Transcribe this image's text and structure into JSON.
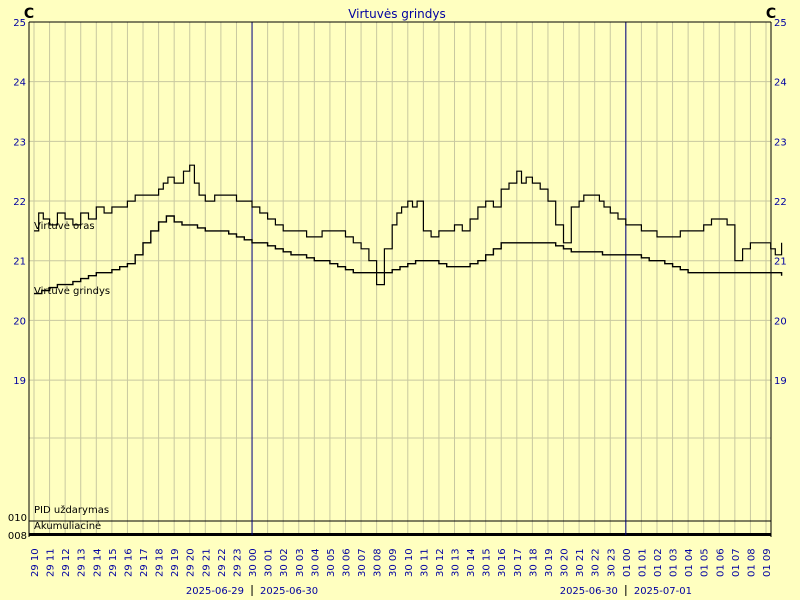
{
  "chart_data": {
    "type": "line",
    "title": "Virtuvės grindys",
    "ylabel_left": "C",
    "ylabel_right": "C",
    "ylim": [
      18.03,
      25
    ],
    "y_ticks": [
      19,
      20,
      21,
      22,
      23,
      24,
      25
    ],
    "x_ticks": [
      "29 10",
      "29 11",
      "29 12",
      "29 13",
      "29 14",
      "29 15",
      "29 16",
      "29 17",
      "29 18",
      "29 19",
      "29 20",
      "29 21",
      "29 22",
      "29 23",
      "30 00",
      "30 01",
      "30 02",
      "30 03",
      "30 04",
      "30 05",
      "30 06",
      "30 07",
      "30 08",
      "30 09",
      "30 10",
      "30 11",
      "30 12",
      "30 13",
      "30 14",
      "30 15",
      "30 16",
      "30 17",
      "30 18",
      "30 19",
      "30 20",
      "30 21",
      "30 22",
      "30 23",
      "01 00",
      "01 01",
      "01 02",
      "01 03",
      "01 04",
      "01 05",
      "01 06",
      "01 07",
      "01 08",
      "01 09"
    ],
    "date_labels": [
      {
        "at_tick": 14,
        "left": "2025-06-29",
        "right": "2025-06-30"
      },
      {
        "at_tick": 38,
        "left": "2025-06-30",
        "right": "2025-07-01"
      }
    ],
    "series": [
      {
        "name": "Virtuvė oras",
        "x": [
          0,
          0.3,
          0.6,
          1,
          1.5,
          2,
          2.5,
          3,
          3.5,
          4,
          4.5,
          5,
          5.5,
          6,
          6.5,
          7,
          7.5,
          8,
          8.3,
          8.6,
          9,
          9.3,
          9.6,
          10,
          10.3,
          10.6,
          11,
          11.3,
          11.6,
          12,
          12.5,
          13,
          13.5,
          14,
          14.5,
          15,
          15.5,
          16,
          16.5,
          17,
          17.5,
          18,
          18.5,
          19,
          19.5,
          20,
          20.5,
          21,
          21.5,
          22,
          22.5,
          23,
          23.3,
          23.6,
          24,
          24.3,
          24.6,
          25,
          25.5,
          26,
          26.5,
          27,
          27.5,
          28,
          28.5,
          29,
          29.5,
          30,
          30.5,
          31,
          31.3,
          31.6,
          32,
          32.5,
          33,
          33.5,
          34,
          34.5,
          35,
          35.3,
          35.6,
          36,
          36.3,
          36.6,
          37,
          37.5,
          38,
          38.5,
          39,
          39.5,
          40,
          40.5,
          41,
          41.5,
          42,
          42.5,
          43,
          43.5,
          44,
          44.5,
          45,
          45.5,
          46,
          46.5,
          47,
          47.3,
          47.6,
          48
        ],
        "values": [
          21.5,
          21.8,
          21.7,
          21.6,
          21.8,
          21.7,
          21.6,
          21.8,
          21.7,
          21.9,
          21.8,
          21.9,
          21.9,
          22.0,
          22.1,
          22.1,
          22.1,
          22.2,
          22.3,
          22.4,
          22.3,
          22.3,
          22.5,
          22.6,
          22.3,
          22.1,
          22.0,
          22.0,
          22.1,
          22.1,
          22.1,
          22.0,
          22.0,
          21.9,
          21.8,
          21.7,
          21.6,
          21.5,
          21.5,
          21.5,
          21.4,
          21.4,
          21.5,
          21.5,
          21.5,
          21.4,
          21.3,
          21.2,
          21.0,
          20.6,
          21.2,
          21.6,
          21.8,
          21.9,
          22.0,
          21.9,
          22.0,
          21.5,
          21.4,
          21.5,
          21.5,
          21.6,
          21.5,
          21.7,
          21.9,
          22.0,
          21.9,
          22.2,
          22.3,
          22.5,
          22.3,
          22.4,
          22.3,
          22.2,
          22.0,
          21.6,
          21.3,
          21.9,
          22.0,
          22.1,
          22.1,
          22.1,
          22.0,
          21.9,
          21.8,
          21.7,
          21.6,
          21.6,
          21.5,
          21.5,
          21.4,
          21.4,
          21.4,
          21.5,
          21.5,
          21.5,
          21.6,
          21.7,
          21.7,
          21.6,
          21.0,
          21.2,
          21.3,
          21.3,
          21.3,
          21.2,
          21.1,
          21.3
        ]
      },
      {
        "name": "Virtuvė grindys",
        "x": [
          0,
          0.5,
          1,
          1.5,
          2,
          2.5,
          3,
          3.5,
          4,
          4.5,
          5,
          5.5,
          6,
          6.5,
          7,
          7.5,
          8,
          8.5,
          9,
          9.5,
          10,
          10.5,
          11,
          11.5,
          12,
          12.5,
          13,
          13.5,
          14,
          14.5,
          15,
          15.5,
          16,
          16.5,
          17,
          17.5,
          18,
          18.5,
          19,
          19.5,
          20,
          20.5,
          21,
          21.5,
          22,
          22.5,
          23,
          23.5,
          24,
          24.5,
          25,
          25.5,
          26,
          26.5,
          27,
          27.5,
          28,
          28.5,
          29,
          29.5,
          30,
          30.5,
          31,
          31.5,
          32,
          32.5,
          33,
          33.5,
          34,
          34.5,
          35,
          35.5,
          36,
          36.5,
          37,
          37.5,
          38,
          38.5,
          39,
          39.5,
          40,
          40.5,
          41,
          41.5,
          42,
          42.5,
          43,
          43.5,
          44,
          44.5,
          45,
          45.5,
          46,
          46.5,
          47,
          47.5,
          48
        ],
        "values": [
          20.45,
          20.5,
          20.55,
          20.6,
          20.6,
          20.65,
          20.7,
          20.75,
          20.8,
          20.8,
          20.85,
          20.9,
          20.95,
          21.1,
          21.3,
          21.5,
          21.65,
          21.75,
          21.65,
          21.6,
          21.6,
          21.55,
          21.5,
          21.5,
          21.5,
          21.45,
          21.4,
          21.35,
          21.3,
          21.3,
          21.25,
          21.2,
          21.15,
          21.1,
          21.1,
          21.05,
          21.0,
          21.0,
          20.95,
          20.9,
          20.85,
          20.8,
          20.8,
          20.8,
          20.8,
          20.8,
          20.85,
          20.9,
          20.95,
          21.0,
          21.0,
          21.0,
          20.95,
          20.9,
          20.9,
          20.9,
          20.95,
          21.0,
          21.1,
          21.2,
          21.3,
          21.3,
          21.3,
          21.3,
          21.3,
          21.3,
          21.3,
          21.25,
          21.2,
          21.15,
          21.15,
          21.15,
          21.15,
          21.1,
          21.1,
          21.1,
          21.1,
          21.1,
          21.05,
          21.0,
          21.0,
          20.95,
          20.9,
          20.85,
          20.8,
          20.8,
          20.8,
          20.8,
          20.8,
          20.8,
          20.8,
          20.8,
          20.8,
          20.8,
          20.8,
          20.8,
          20.75
        ]
      }
    ],
    "bottom_tracks": [
      {
        "label": "PID uždarymas",
        "value_label": "010"
      },
      {
        "label": "Akumuliacinė",
        "value_label": "008"
      }
    ],
    "grid": true
  },
  "colors": {
    "background": "#ffffc0",
    "grid": "#c8c8a0",
    "axis": "#000000",
    "tick_text": "#0000a0",
    "day_divider": "#000080",
    "series": "#000000"
  }
}
